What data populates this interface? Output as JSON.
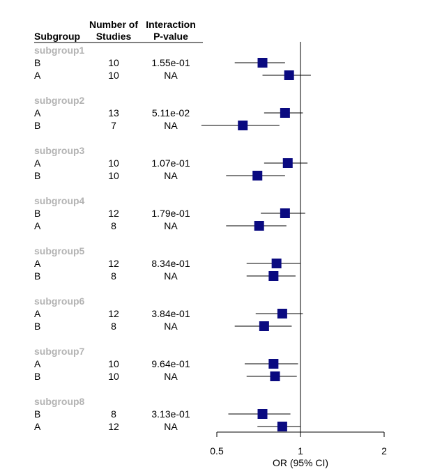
{
  "headers": {
    "subgroup": "Subgroup",
    "studies_line1": "Number of",
    "studies_line2": "Studies",
    "pvalue_line1": "Interaction",
    "pvalue_line2": "P-value"
  },
  "chart_data": {
    "type": "forest",
    "xlabel": "OR (95% CI)",
    "x_scale": "log",
    "xlim": [
      0.5,
      2
    ],
    "x_ticks": [
      0.5,
      1,
      2
    ],
    "x_tick_labels": [
      "0.5",
      "1",
      "2"
    ],
    "reference_line": 1,
    "marker_color": "#0a0a80",
    "groups": [
      {
        "name": "subgroup1",
        "rows": [
          {
            "level": "B",
            "studies": "10",
            "pvalue": "1.55e-01",
            "or": 0.73,
            "lower": 0.58,
            "upper": 0.88
          },
          {
            "level": "A",
            "studies": "10",
            "pvalue": "NA",
            "or": 0.91,
            "lower": 0.73,
            "upper": 1.09
          }
        ]
      },
      {
        "name": "subgroup2",
        "rows": [
          {
            "level": "A",
            "studies": "13",
            "pvalue": "5.11e-02",
            "or": 0.88,
            "lower": 0.74,
            "upper": 1.02
          },
          {
            "level": "B",
            "studies": "7",
            "pvalue": "NA",
            "or": 0.62,
            "lower": 0.44,
            "upper": 0.84
          }
        ]
      },
      {
        "name": "subgroup3",
        "rows": [
          {
            "level": "A",
            "studies": "10",
            "pvalue": "1.07e-01",
            "or": 0.9,
            "lower": 0.74,
            "upper": 1.06
          },
          {
            "level": "B",
            "studies": "10",
            "pvalue": "NA",
            "or": 0.7,
            "lower": 0.54,
            "upper": 0.88
          }
        ]
      },
      {
        "name": "subgroup4",
        "rows": [
          {
            "level": "B",
            "studies": "12",
            "pvalue": "1.79e-01",
            "or": 0.88,
            "lower": 0.72,
            "upper": 1.04
          },
          {
            "level": "A",
            "studies": "8",
            "pvalue": "NA",
            "or": 0.71,
            "lower": 0.54,
            "upper": 0.89
          }
        ]
      },
      {
        "name": "subgroup5",
        "rows": [
          {
            "level": "A",
            "studies": "12",
            "pvalue": "8.34e-01",
            "or": 0.82,
            "lower": 0.64,
            "upper": 1.0
          },
          {
            "level": "B",
            "studies": "8",
            "pvalue": "NA",
            "or": 0.8,
            "lower": 0.64,
            "upper": 0.96
          }
        ]
      },
      {
        "name": "subgroup6",
        "rows": [
          {
            "level": "A",
            "studies": "12",
            "pvalue": "3.84e-01",
            "or": 0.86,
            "lower": 0.69,
            "upper": 1.02
          },
          {
            "level": "B",
            "studies": "8",
            "pvalue": "NA",
            "or": 0.74,
            "lower": 0.58,
            "upper": 0.93
          }
        ]
      },
      {
        "name": "subgroup7",
        "rows": [
          {
            "level": "A",
            "studies": "10",
            "pvalue": "9.64e-01",
            "or": 0.8,
            "lower": 0.63,
            "upper": 0.98
          },
          {
            "level": "B",
            "studies": "10",
            "pvalue": "NA",
            "or": 0.81,
            "lower": 0.64,
            "upper": 0.97
          }
        ]
      },
      {
        "name": "subgroup8",
        "rows": [
          {
            "level": "B",
            "studies": "8",
            "pvalue": "3.13e-01",
            "or": 0.73,
            "lower": 0.55,
            "upper": 0.92
          },
          {
            "level": "A",
            "studies": "12",
            "pvalue": "NA",
            "or": 0.86,
            "lower": 0.7,
            "upper": 1.0
          }
        ]
      }
    ]
  }
}
